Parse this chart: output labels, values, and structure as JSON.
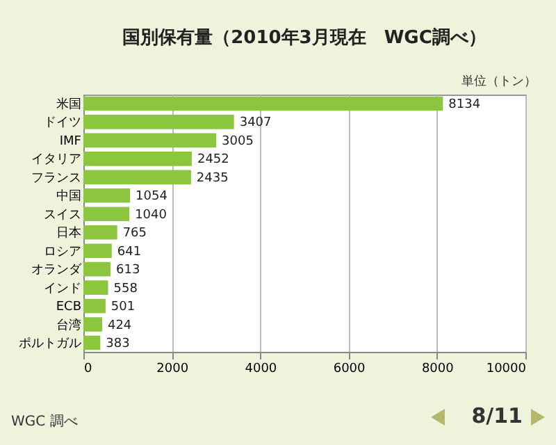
{
  "chart_data": {
    "type": "bar",
    "orientation": "horizontal",
    "title": "国別保有量（2010年3月現在　WGC調べ）",
    "categories": [
      "米国",
      "ドイツ",
      "IMF",
      "イタリア",
      "フランス",
      "中国",
      "スイス",
      "日本",
      "ロシア",
      "オランダ",
      "インド",
      "ECB",
      "台湾",
      "ポルトガル"
    ],
    "values": [
      8134,
      3407,
      3005,
      2452,
      2435,
      1054,
      1040,
      765,
      641,
      613,
      558,
      501,
      424,
      383
    ],
    "color": "#8cc63f",
    "xlim": [
      0,
      10000
    ],
    "xticks": [
      0,
      2000,
      4000,
      6000,
      8000,
      10000
    ],
    "grid": "x",
    "data_labels": true,
    "annotations": [
      "単位（トン）",
      "WGC 調べ",
      "8/11"
    ]
  }
}
